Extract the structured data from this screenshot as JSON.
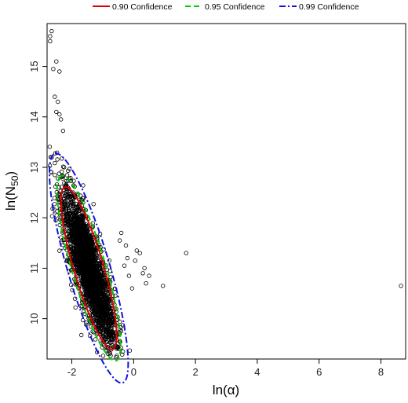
{
  "chart_data": {
    "type": "scatter",
    "xlabel": "ln(α)",
    "ylabel": "ln(N",
    "ylabel_sub": "50",
    "ylabel_close": ")",
    "xlim": [
      -2.8,
      8.8
    ],
    "ylim": [
      9.2,
      15.85
    ],
    "xticks": [
      -2,
      0,
      2,
      4,
      6,
      8
    ],
    "yticks": [
      10,
      11,
      12,
      13,
      14,
      15
    ],
    "grid": false,
    "legend_position": "top",
    "point_cloud": {
      "center": [
        -1.45,
        11.0
      ],
      "sd_x": 0.42,
      "sd_y": 0.75,
      "correlation": -0.83
    },
    "series": [
      {
        "name": "points",
        "style": "open-circle",
        "color": "#000000",
        "outliers": [
          [
            -2.65,
            15.7
          ],
          [
            -2.7,
            15.6
          ],
          [
            -2.7,
            15.5
          ],
          [
            -2.5,
            15.1
          ],
          [
            -2.4,
            14.9
          ],
          [
            -2.6,
            14.95
          ],
          [
            -2.55,
            14.4
          ],
          [
            -2.45,
            14.3
          ],
          [
            -2.5,
            14.1
          ],
          [
            -2.4,
            14.05
          ],
          [
            -2.35,
            13.95
          ],
          [
            1.7,
            11.3
          ],
          [
            0.95,
            10.65
          ],
          [
            8.65,
            10.65
          ],
          [
            0.5,
            10.85
          ],
          [
            0.35,
            11.0
          ],
          [
            0.2,
            11.3
          ],
          [
            0.1,
            11.35
          ],
          [
            -0.4,
            11.7
          ],
          [
            -0.45,
            11.55
          ],
          [
            0.05,
            11.15
          ],
          [
            -0.15,
            10.85
          ],
          [
            -0.05,
            10.6
          ],
          [
            0.3,
            10.9
          ],
          [
            -0.25,
            11.45
          ],
          [
            -0.2,
            11.2
          ],
          [
            -0.3,
            11.05
          ],
          [
            0.4,
            10.7
          ]
        ]
      }
    ],
    "ellipses": [
      {
        "name": "0.90 Confidence",
        "color": "#dd0000",
        "dash": "",
        "level": 0.9
      },
      {
        "name": "0.95 Confidence",
        "color": "#00cc00",
        "dash": "7,4",
        "level": 0.95
      },
      {
        "name": "0.99 Confidence",
        "color": "#1111dd",
        "dash": "8,3,2,3",
        "level": 0.99
      }
    ]
  }
}
